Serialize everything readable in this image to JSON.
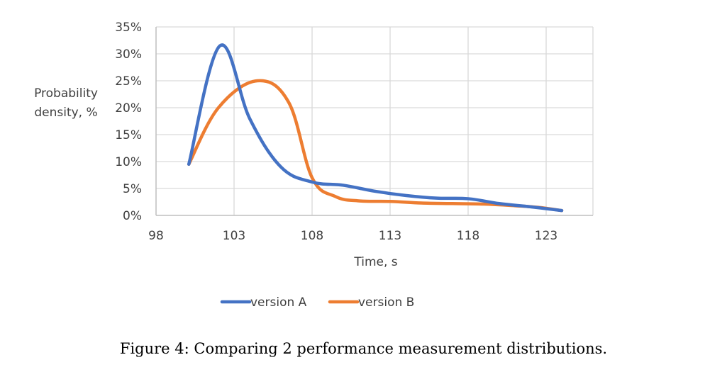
{
  "chart_data": {
    "type": "line",
    "xlabel": "Time, s",
    "ylabel_lines": [
      "Probability",
      "density, %"
    ],
    "xlim": [
      98,
      126
    ],
    "ylim": [
      0,
      0.35
    ],
    "x_ticks": [
      98,
      103,
      108,
      113,
      118,
      123
    ],
    "y_ticks": [
      0,
      0.05,
      0.1,
      0.15,
      0.2,
      0.25,
      0.3,
      0.35
    ],
    "y_tick_labels": [
      "0%",
      "5%",
      "10%",
      "15%",
      "20%",
      "25%",
      "30%",
      "35%"
    ],
    "grid": true,
    "legend_position": "bottom",
    "series": [
      {
        "name": "version A",
        "color": "#4472C4",
        "x": [
          100.1,
          102.1,
          104,
          106,
          108,
          110,
          112,
          114,
          116,
          118,
          120,
          122,
          124
        ],
        "y": [
          0.095,
          0.315,
          0.18,
          0.09,
          0.062,
          0.056,
          0.045,
          0.037,
          0.032,
          0.031,
          0.022,
          0.016,
          0.009
        ]
      },
      {
        "name": "version B",
        "color": "#ED7D31",
        "x": [
          100.1,
          102,
          104.5,
          106.5,
          108,
          109.5,
          111,
          113,
          115,
          117,
          119,
          121,
          122.5,
          124
        ],
        "y": [
          0.095,
          0.2,
          0.25,
          0.21,
          0.07,
          0.035,
          0.027,
          0.026,
          0.023,
          0.022,
          0.021,
          0.018,
          0.015,
          0.009
        ]
      }
    ]
  },
  "caption": "Figure 4:  Comparing 2 performance measurement distributions."
}
